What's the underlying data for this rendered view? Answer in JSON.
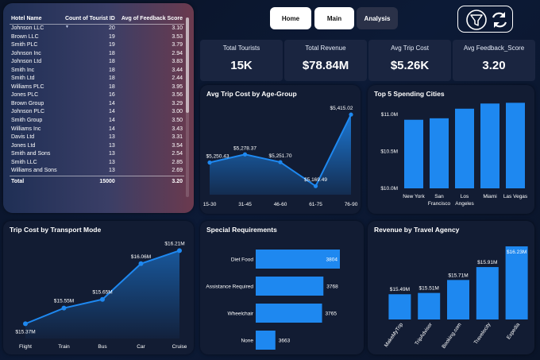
{
  "hotel_table": {
    "columns": [
      "Hotel Name",
      "Count of Tourist ID",
      "Avg of Feedback Score"
    ],
    "rows": [
      [
        "Johnson LLC",
        "20",
        "3.10"
      ],
      [
        "Brown LLC",
        "19",
        "3.53"
      ],
      [
        "Smith PLC",
        "19",
        "3.79"
      ],
      [
        "Johnson Inc",
        "18",
        "2.94"
      ],
      [
        "Johnson Ltd",
        "18",
        "3.83"
      ],
      [
        "Smith Inc",
        "18",
        "3.44"
      ],
      [
        "Smith Ltd",
        "18",
        "2.44"
      ],
      [
        "Williams PLC",
        "18",
        "3.95"
      ],
      [
        "Jones PLC",
        "16",
        "3.56"
      ],
      [
        "Brown Group",
        "14",
        "3.29"
      ],
      [
        "Johnson PLC",
        "14",
        "3.00"
      ],
      [
        "Smith Group",
        "14",
        "3.50"
      ],
      [
        "Williams Inc",
        "14",
        "3.43"
      ],
      [
        "Davis Ltd",
        "13",
        "3.31"
      ],
      [
        "Jones Ltd",
        "13",
        "3.54"
      ],
      [
        "Smith and Sons",
        "13",
        "2.54"
      ],
      [
        "Smith LLC",
        "13",
        "2.85"
      ],
      [
        "Williams and Sons",
        "13",
        "2.69"
      ]
    ],
    "total": [
      "Total",
      "15000",
      "3.20"
    ]
  },
  "nav": {
    "home_label": "Home",
    "main_label": "Main",
    "analysis_label": "Analysis"
  },
  "icons": {
    "filter": "filter-icon",
    "refresh": "refresh-icon"
  },
  "kpis": [
    {
      "label": "Total Tourists",
      "value": "15K"
    },
    {
      "label": "Total Revenue",
      "value": "$78.84M"
    },
    {
      "label": "Avg Trip Cost",
      "value": "$5.26K"
    },
    {
      "label": "Avg Feedback_Score",
      "value": "3.20"
    }
  ],
  "colors": {
    "accent": "#1e88f0",
    "panel": "#121c33"
  },
  "chart_data": [
    {
      "id": "age",
      "type": "area",
      "title": "Avg Trip Cost by Age-Group",
      "categories": [
        "15-30",
        "31-45",
        "46-60",
        "61-75",
        "76-90"
      ],
      "values": [
        5250.43,
        5278.37,
        5251.7,
        5169.49,
        5415.02
      ],
      "labels": [
        "$5,250.43",
        "$5,278.37",
        "$5,251.70",
        "$5,169.49",
        "$5,415.02"
      ],
      "ylim": [
        5140,
        5440
      ]
    },
    {
      "id": "cities",
      "type": "bar",
      "title": "Top 5 Spending Cities",
      "categories": [
        "New York",
        "San Francisco",
        "Los Angeles",
        "Miami",
        "Las Vegas"
      ],
      "category_lines": [
        [
          "New York"
        ],
        [
          "San",
          "Francisco"
        ],
        [
          "Los",
          "Angeles"
        ],
        [
          "Miami"
        ],
        [
          "Las Vegas"
        ]
      ],
      "values": [
        10.93,
        10.95,
        11.08,
        11.15,
        11.16
      ],
      "yticks": [
        10.0,
        10.5,
        11.0
      ],
      "ytick_labels": [
        "$10.0M",
        "$10.5M",
        "$11.0M"
      ],
      "ylim": [
        10.0,
        11.25
      ]
    },
    {
      "id": "transport",
      "type": "line",
      "title": "Trip Cost by Transport Mode",
      "categories": [
        "Flight",
        "Train",
        "Bus",
        "Car",
        "Cruise"
      ],
      "values": [
        15.37,
        15.55,
        15.65,
        16.06,
        16.21
      ],
      "labels": [
        "$15.37M",
        "$15.55M",
        "$15.65M",
        "$16.06M",
        "$16.21M"
      ],
      "ylim": [
        15.2,
        16.35
      ]
    },
    {
      "id": "special",
      "type": "bar",
      "orientation": "horizontal",
      "title": "Special Requirements",
      "categories": [
        "Diet Food",
        "Assistance Required",
        "Wheelchair",
        "None"
      ],
      "values": [
        3804,
        3768,
        3765,
        3663
      ],
      "labels": [
        "3804",
        "3768",
        "3765",
        "3663"
      ],
      "xlim": [
        3620,
        3804
      ]
    },
    {
      "id": "agency",
      "type": "bar",
      "title": "Revenue by Travel Agency",
      "categories": [
        "MakeMyTrip",
        "TripAdvisor",
        "Booking.com",
        "Travelocity",
        "Expedia"
      ],
      "values": [
        15.49,
        15.51,
        15.71,
        15.91,
        16.23
      ],
      "labels": [
        "$15.49M",
        "$15.51M",
        "$15.71M",
        "$15.91M",
        "$16.23M"
      ],
      "ylim": [
        15.1,
        16.23
      ]
    }
  ]
}
